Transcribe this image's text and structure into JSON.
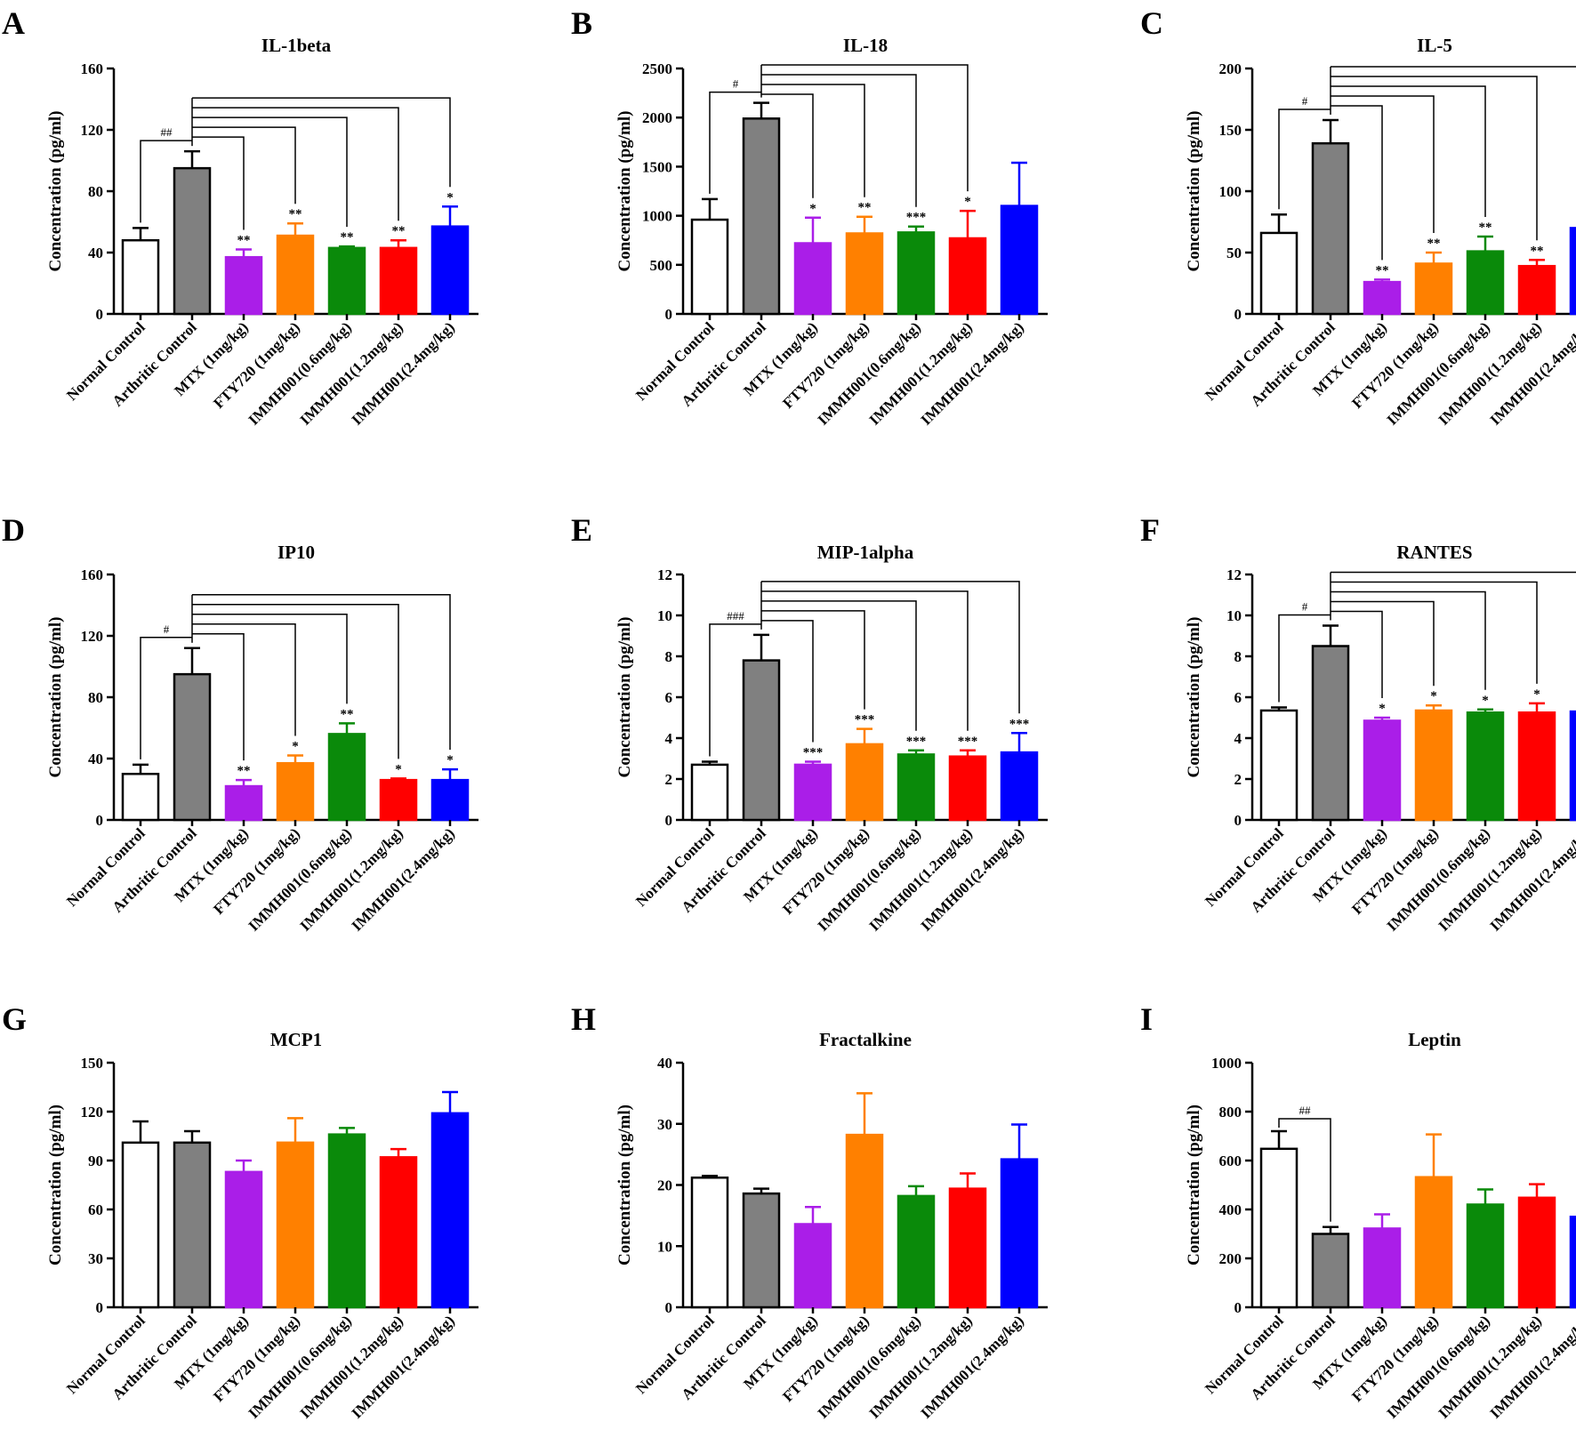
{
  "figure": {
    "categories": [
      "Normal Control",
      "Arthritic Control",
      "MTX (1mg/kg)",
      "FTY720 (1mg/kg)",
      "IMMH001(0.6mg/kg)",
      "IMMH001(1.2mg/kg)",
      "IMMH001(2.4mg/kg)"
    ],
    "bar_colors": [
      "#ffffff",
      "#808080",
      "#aa1ee8",
      "#ff8000",
      "#0a8a0a",
      "#ff0000",
      "#0000ff"
    ],
    "edge_colors": [
      "#000000",
      "#000000",
      "#aa1ee8",
      "#ff8000",
      "#0a8a0a",
      "#ff0000",
      "#0000ff"
    ],
    "ylabel": "Concentration (pg/ml)"
  },
  "chart_data": [
    {
      "panel": "A",
      "type": "bar",
      "title": "IL-1beta",
      "ylabel": "Concentration (pg/ml)",
      "ylim": [
        0,
        160
      ],
      "yticks": [
        0,
        40,
        80,
        120,
        160
      ],
      "values": [
        48,
        95,
        37,
        51,
        43,
        43,
        57
      ],
      "errors": [
        8,
        11,
        5,
        8,
        1,
        5,
        13
      ],
      "stars": [
        "",
        "",
        "**",
        "**",
        "**",
        "**",
        "*"
      ],
      "brackets": [
        {
          "to": 0,
          "label": "##"
        },
        {
          "to": 2,
          "label": ""
        },
        {
          "to": 3,
          "label": ""
        },
        {
          "to": 4,
          "label": ""
        },
        {
          "to": 5,
          "label": ""
        },
        {
          "to": 6,
          "label": ""
        }
      ]
    },
    {
      "panel": "B",
      "type": "bar",
      "title": "IL-18",
      "ylabel": "Concentration (pg/ml)",
      "ylim": [
        0,
        2500
      ],
      "yticks": [
        0,
        500,
        1000,
        1500,
        2000,
        2500
      ],
      "values": [
        960,
        1990,
        720,
        820,
        830,
        770,
        1100
      ],
      "errors": [
        210,
        160,
        260,
        170,
        60,
        280,
        440
      ],
      "stars": [
        "",
        "",
        "*",
        "**",
        "***",
        "*",
        ""
      ],
      "brackets": [
        {
          "to": 0,
          "label": "#"
        },
        {
          "to": 2,
          "label": ""
        },
        {
          "to": 3,
          "label": ""
        },
        {
          "to": 4,
          "label": ""
        },
        {
          "to": 5,
          "label": ""
        }
      ]
    },
    {
      "panel": "C",
      "type": "bar",
      "title": "IL-5",
      "ylabel": "Concentration (pg/ml)",
      "ylim": [
        0,
        200
      ],
      "yticks": [
        0,
        50,
        100,
        150,
        200
      ],
      "values": [
        66,
        139,
        26,
        41,
        51,
        39,
        70
      ],
      "errors": [
        15,
        19,
        2,
        9,
        12,
        5,
        30
      ],
      "stars": [
        "",
        "",
        "**",
        "**",
        "**",
        "**",
        "*"
      ],
      "brackets": [
        {
          "to": 0,
          "label": "#"
        },
        {
          "to": 2,
          "label": ""
        },
        {
          "to": 3,
          "label": ""
        },
        {
          "to": 4,
          "label": ""
        },
        {
          "to": 5,
          "label": ""
        },
        {
          "to": 6,
          "label": ""
        }
      ]
    },
    {
      "panel": "D",
      "type": "bar",
      "title": "IP10",
      "ylabel": "Concentration (pg/ml)",
      "ylim": [
        0,
        160
      ],
      "yticks": [
        0,
        40,
        80,
        120,
        160
      ],
      "values": [
        30,
        95,
        22,
        37,
        56,
        26,
        26
      ],
      "errors": [
        6,
        17,
        4,
        5,
        7,
        1,
        7
      ],
      "stars": [
        "",
        "",
        "**",
        "*",
        "**",
        "*",
        "*"
      ],
      "brackets": [
        {
          "to": 0,
          "label": "#"
        },
        {
          "to": 2,
          "label": ""
        },
        {
          "to": 3,
          "label": ""
        },
        {
          "to": 4,
          "label": ""
        },
        {
          "to": 5,
          "label": ""
        },
        {
          "to": 6,
          "label": ""
        }
      ]
    },
    {
      "panel": "E",
      "type": "bar",
      "title": "MIP-1alpha",
      "ylabel": "Concentration (pg/ml)",
      "ylim": [
        0,
        12
      ],
      "yticks": [
        0,
        2,
        4,
        6,
        8,
        10,
        12
      ],
      "values": [
        2.7,
        7.8,
        2.7,
        3.7,
        3.2,
        3.1,
        3.3
      ],
      "errors": [
        0.15,
        1.25,
        0.15,
        0.75,
        0.2,
        0.3,
        0.95
      ],
      "stars": [
        "",
        "",
        "***",
        "***",
        "***",
        "***",
        "***"
      ],
      "brackets": [
        {
          "to": 0,
          "label": "###"
        },
        {
          "to": 2,
          "label": ""
        },
        {
          "to": 3,
          "label": ""
        },
        {
          "to": 4,
          "label": ""
        },
        {
          "to": 5,
          "label": ""
        },
        {
          "to": 6,
          "label": ""
        }
      ]
    },
    {
      "panel": "F",
      "type": "bar",
      "title": "RANTES",
      "ylabel": "Concentration (pg/ml)",
      "ylim": [
        0,
        12
      ],
      "yticks": [
        0,
        2,
        4,
        6,
        8,
        10,
        12
      ],
      "values": [
        5.35,
        8.5,
        4.85,
        5.35,
        5.25,
        5.25,
        5.3
      ],
      "errors": [
        0.15,
        1.0,
        0.15,
        0.25,
        0.15,
        0.45,
        0.3
      ],
      "stars": [
        "",
        "",
        "*",
        "*",
        "*",
        "*",
        "*"
      ],
      "brackets": [
        {
          "to": 0,
          "label": "#"
        },
        {
          "to": 2,
          "label": ""
        },
        {
          "to": 3,
          "label": ""
        },
        {
          "to": 4,
          "label": ""
        },
        {
          "to": 5,
          "label": ""
        },
        {
          "to": 6,
          "label": ""
        }
      ]
    },
    {
      "panel": "G",
      "type": "bar",
      "title": "MCP1",
      "ylabel": "Concentration (pg/ml)",
      "ylim": [
        0,
        150
      ],
      "yticks": [
        0,
        30,
        60,
        90,
        120,
        150
      ],
      "values": [
        101,
        101,
        83,
        101,
        106,
        92,
        119
      ],
      "errors": [
        13,
        7,
        7,
        15,
        4,
        5,
        13
      ],
      "stars": [
        "",
        "",
        "",
        "",
        "",
        "",
        ""
      ],
      "brackets": []
    },
    {
      "panel": "H",
      "type": "bar",
      "title": "Fractalkine",
      "ylabel": "Concentration (pg/ml)",
      "ylim": [
        0,
        40
      ],
      "yticks": [
        0,
        10,
        20,
        30,
        40
      ],
      "values": [
        21.2,
        18.6,
        13.6,
        28.2,
        18.2,
        19.4,
        24.2
      ],
      "errors": [
        0.3,
        0.8,
        2.8,
        6.8,
        1.6,
        2.5,
        5.7
      ],
      "stars": [
        "",
        "",
        "",
        "",
        "",
        "",
        ""
      ],
      "brackets": []
    },
    {
      "panel": "I",
      "type": "bar",
      "title": "Leptin",
      "ylabel": "Concentration (pg/ml)",
      "ylim": [
        0,
        1000
      ],
      "yticks": [
        0,
        200,
        400,
        600,
        800,
        1000
      ],
      "values": [
        648,
        300,
        322,
        532,
        420,
        448,
        370
      ],
      "errors": [
        72,
        28,
        58,
        175,
        62,
        55,
        82
      ],
      "stars": [
        "",
        "",
        "",
        "",
        "",
        "",
        ""
      ],
      "brackets": [
        {
          "to": 0,
          "label": "##",
          "target": 1
        }
      ]
    }
  ]
}
